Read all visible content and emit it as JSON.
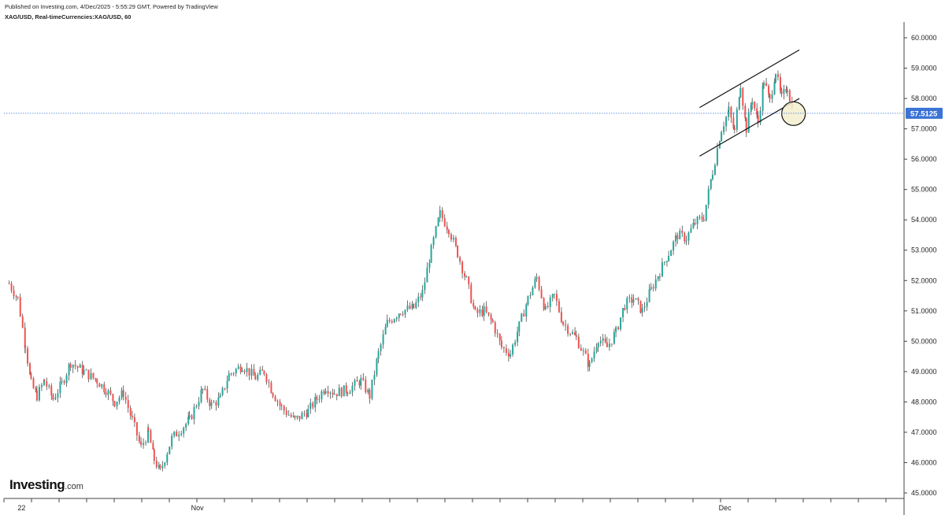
{
  "header": {
    "published": "Published on Investing.com, 4/Dec/2025 - 5:55:29 GMT, Powered by TradingView",
    "symbol": "XAG/USD, Real-timeCurrencies:XAG/USD, 60"
  },
  "logo": {
    "name": "Investing",
    "domain": ".com"
  },
  "colors": {
    "up": "#26a69a",
    "down": "#ef5350",
    "wick": "#333333",
    "price_line": "#3b73d6",
    "price_tag": "#3b73d6",
    "channel": "#111111",
    "circle_fill": "#f3efcf"
  },
  "chart_data": {
    "type": "candlestick",
    "title": "",
    "xlabel": "",
    "ylabel": "",
    "ylim": [
      45.0,
      60.0
    ],
    "y_ticks": [
      "45.0000",
      "46.0000",
      "47.0000",
      "48.0000",
      "49.0000",
      "50.0000",
      "51.0000",
      "52.0000",
      "53.0000",
      "54.0000",
      "55.0000",
      "56.0000",
      "57.0000",
      "58.0000",
      "59.0000",
      "60.0000"
    ],
    "x_tick_labels": [
      {
        "label": "22",
        "date": "2025-10-22"
      },
      {
        "label": "Nov",
        "date": "2025-11-01"
      },
      {
        "label": "Dec",
        "date": "2025-12-01"
      }
    ],
    "date_range": [
      "2025-10-21",
      "2025-12-05"
    ],
    "current_price": "57.5125",
    "series": [
      {
        "kind": "close_path",
        "points": [
          [
            "2025-10-21",
            51.9
          ],
          [
            "2025-10-21",
            51.4
          ],
          [
            "2025-10-22",
            49.9
          ],
          [
            "2025-10-22",
            48.6
          ],
          [
            "2025-10-22",
            48.2
          ],
          [
            "2025-10-23",
            48.7
          ],
          [
            "2025-10-23",
            48.1
          ],
          [
            "2025-10-24",
            48.6
          ],
          [
            "2025-10-24",
            49.3
          ],
          [
            "2025-10-25",
            49.0
          ],
          [
            "2025-10-26",
            48.7
          ],
          [
            "2025-10-26",
            48.4
          ],
          [
            "2025-10-27",
            48.0
          ],
          [
            "2025-10-27",
            48.3
          ],
          [
            "2025-10-28",
            47.4
          ],
          [
            "2025-10-28",
            46.5
          ],
          [
            "2025-10-29",
            47.0
          ],
          [
            "2025-10-29",
            46.1
          ],
          [
            "2025-10-29",
            45.7
          ],
          [
            "2025-10-30",
            46.8
          ],
          [
            "2025-10-31",
            47.4
          ],
          [
            "2025-11-01",
            48.4
          ],
          [
            "2025-11-01",
            47.9
          ],
          [
            "2025-11-02",
            48.1
          ],
          [
            "2025-11-02",
            48.9
          ],
          [
            "2025-11-03",
            49.2
          ],
          [
            "2025-11-04",
            48.8
          ],
          [
            "2025-11-04",
            49.0
          ],
          [
            "2025-11-05",
            48.3
          ],
          [
            "2025-11-05",
            47.8
          ],
          [
            "2025-11-06",
            47.4
          ],
          [
            "2025-11-07",
            47.7
          ],
          [
            "2025-11-07",
            48.1
          ],
          [
            "2025-11-08",
            48.5
          ],
          [
            "2025-11-08",
            48.3
          ],
          [
            "2025-11-09",
            48.4
          ],
          [
            "2025-11-10",
            48.7
          ],
          [
            "2025-11-10",
            48.2
          ],
          [
            "2025-11-11",
            49.6
          ],
          [
            "2025-11-11",
            50.6
          ],
          [
            "2025-11-12",
            51.0
          ],
          [
            "2025-11-13",
            51.1
          ],
          [
            "2025-11-13",
            51.6
          ],
          [
            "2025-11-14",
            53.0
          ],
          [
            "2025-11-14",
            54.2
          ],
          [
            "2025-11-15",
            53.7
          ],
          [
            "2025-11-15",
            52.9
          ],
          [
            "2025-11-16",
            52.0
          ],
          [
            "2025-11-16",
            50.9
          ],
          [
            "2025-11-17",
            51.0
          ],
          [
            "2025-11-17",
            50.6
          ],
          [
            "2025-11-18",
            49.8
          ],
          [
            "2025-11-18",
            49.6
          ],
          [
            "2025-11-19",
            50.5
          ],
          [
            "2025-11-19",
            51.4
          ],
          [
            "2025-11-20",
            52.1
          ],
          [
            "2025-11-20",
            51.0
          ],
          [
            "2025-11-21",
            51.5
          ],
          [
            "2025-11-21",
            50.6
          ],
          [
            "2025-11-22",
            50.1
          ],
          [
            "2025-11-23",
            49.2
          ],
          [
            "2025-11-23",
            50.1
          ],
          [
            "2025-11-24",
            49.8
          ],
          [
            "2025-11-24",
            50.3
          ],
          [
            "2025-11-25",
            51.2
          ],
          [
            "2025-11-25",
            51.4
          ],
          [
            "2025-11-26",
            51.0
          ],
          [
            "2025-11-26",
            51.7
          ],
          [
            "2025-11-27",
            52.3
          ],
          [
            "2025-11-27",
            52.9
          ],
          [
            "2025-11-28",
            53.5
          ],
          [
            "2025-11-28",
            53.4
          ],
          [
            "2025-11-29",
            53.9
          ],
          [
            "2025-11-29",
            54.1
          ],
          [
            "2025-11-30",
            55.6
          ],
          [
            "2025-11-30",
            57.0
          ],
          [
            "2025-12-01",
            57.6
          ],
          [
            "2025-12-01",
            56.9
          ],
          [
            "2025-12-01",
            58.5
          ],
          [
            "2025-12-02",
            57.0
          ],
          [
            "2025-12-02",
            58.0
          ],
          [
            "2025-12-02",
            57.2
          ],
          [
            "2025-12-03",
            58.6
          ],
          [
            "2025-12-03",
            57.9
          ],
          [
            "2025-12-03",
            58.9
          ],
          [
            "2025-12-04",
            58.0
          ],
          [
            "2025-12-04",
            58.4
          ],
          [
            "2025-12-04",
            57.5
          ]
        ]
      },
      {
        "kind": "channel_line",
        "points": [
          [
            "2025-11-30",
            57.7
          ],
          [
            "2025-12-05",
            59.6
          ]
        ]
      },
      {
        "kind": "channel_line",
        "points": [
          [
            "2025-11-30",
            56.1
          ],
          [
            "2025-12-05",
            58.0
          ]
        ]
      },
      {
        "kind": "marker_circle",
        "points": [
          [
            "2025-12-04",
            57.5
          ]
        ]
      }
    ]
  }
}
